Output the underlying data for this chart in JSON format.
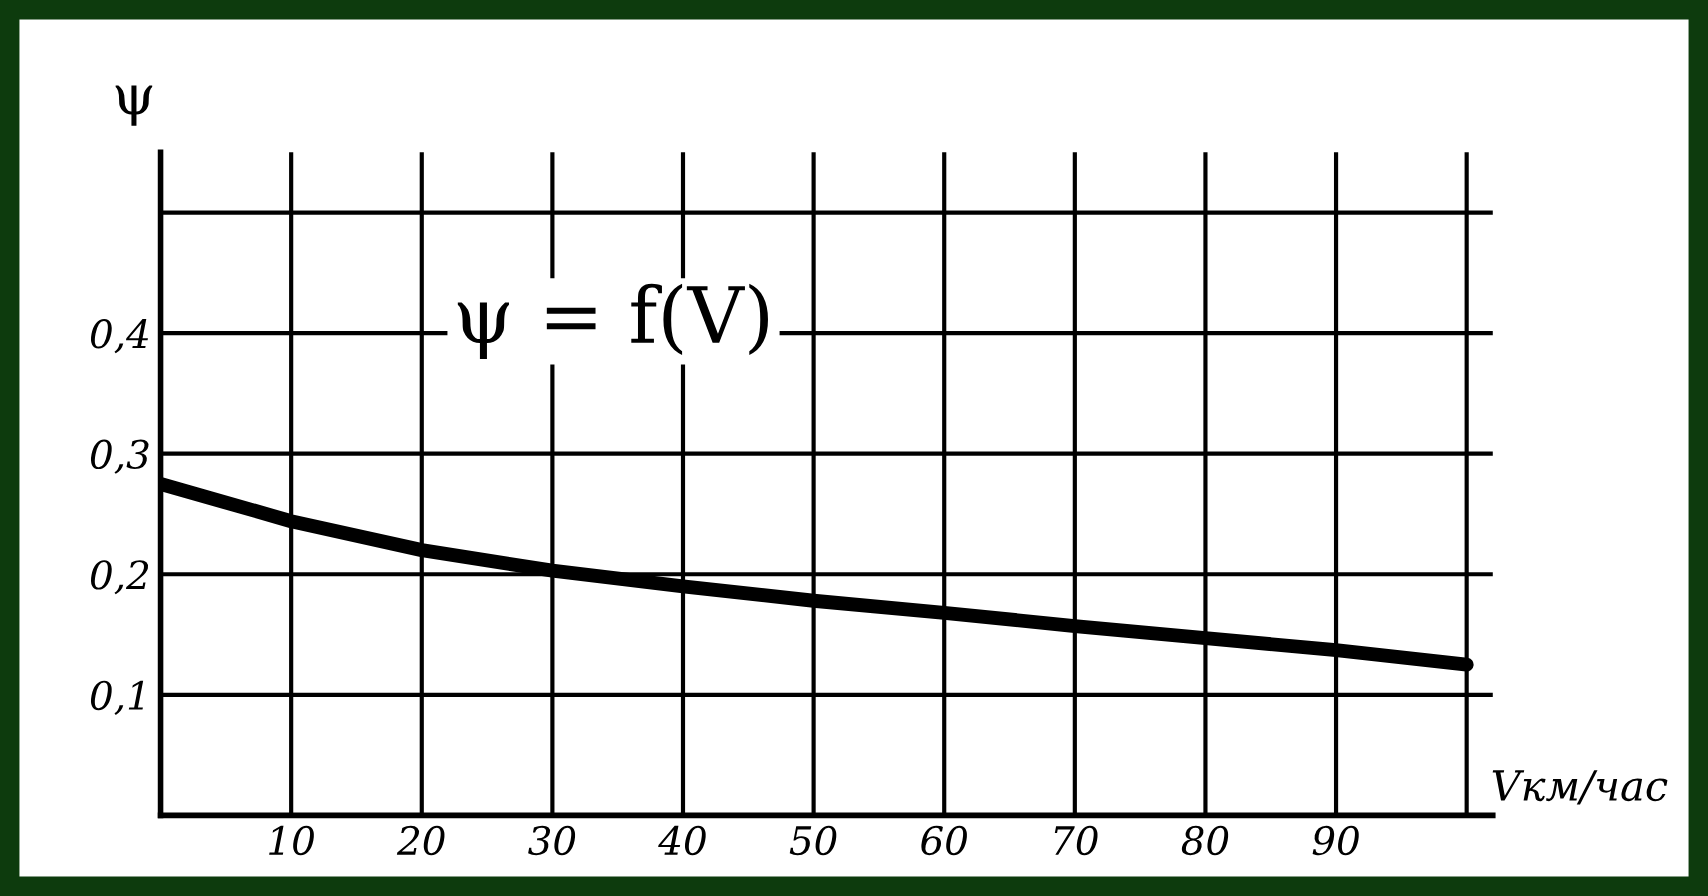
{
  "chart_data": {
    "type": "line",
    "xlabel": "Vкм/час",
    "ylabel": "ψ",
    "annotations": [
      "ψ = f(V)"
    ],
    "x": [
      0,
      10,
      20,
      30,
      40,
      50,
      60,
      70,
      80,
      90,
      100
    ],
    "series": [
      {
        "color": "#000000",
        "values": [
          0.275,
          0.244,
          0.22,
          0.203,
          0.19,
          0.178,
          0.168,
          0.157,
          0.147,
          0.137,
          0.125
        ]
      }
    ],
    "xlim": [
      0,
      102
    ],
    "ylim": [
      0,
      0.55
    ],
    "xticks": [
      10,
      20,
      30,
      40,
      50,
      60,
      70,
      80,
      90,
      {
        "value": 100,
        "label": null
      }
    ],
    "yticks": [
      {
        "value": 0.1,
        "label": "0,1"
      },
      {
        "value": 0.2,
        "label": "0,2"
      },
      {
        "value": 0.3,
        "label": "0,3"
      },
      {
        "value": 0.4,
        "label": "0,4"
      },
      {
        "value": 0.5,
        "label": null
      }
    ],
    "grid": true,
    "line_style": "solid",
    "marker": "none"
  }
}
